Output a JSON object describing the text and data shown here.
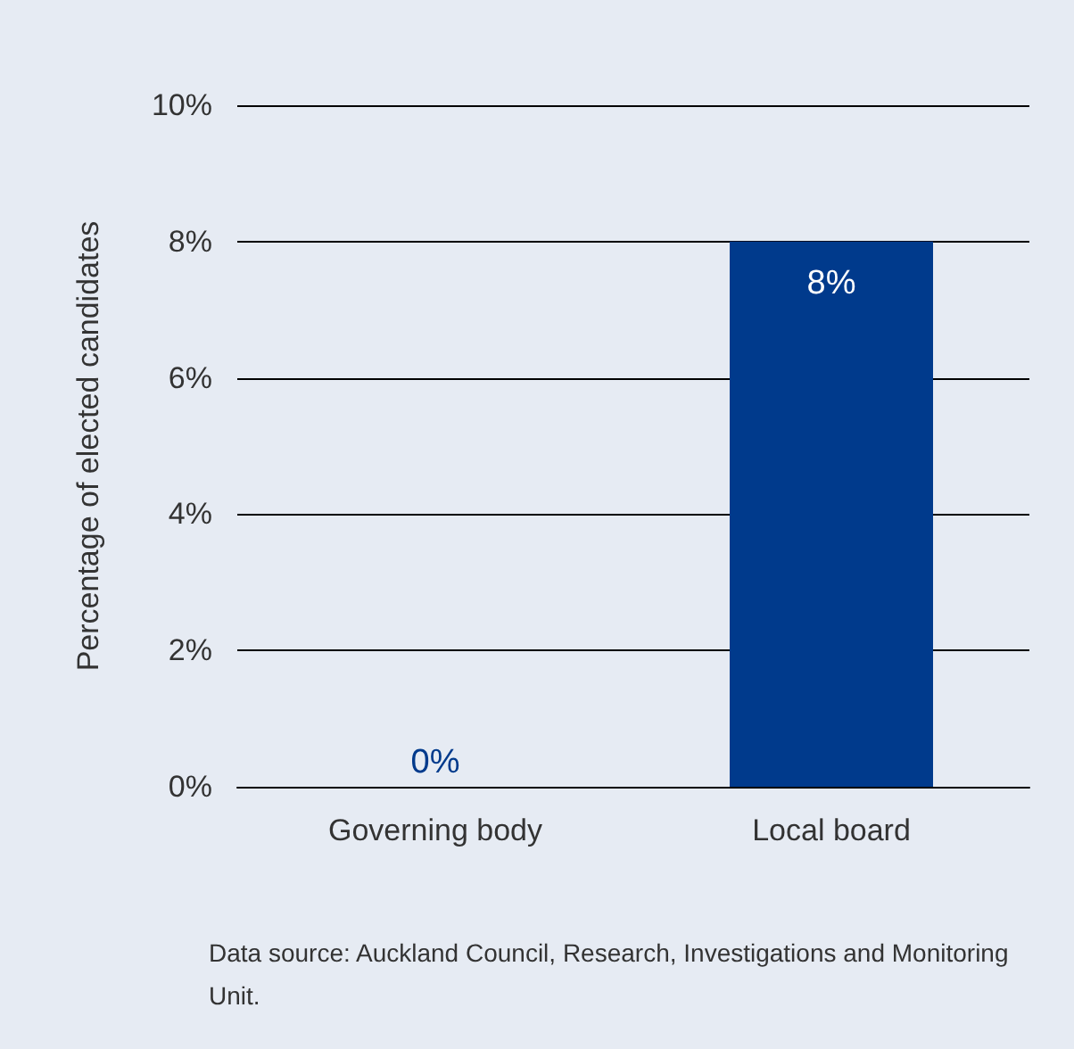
{
  "chart_data": {
    "type": "bar",
    "ylabel": "Percentage of elected candidates",
    "categories": [
      "Governing body",
      "Local board"
    ],
    "values": [
      0,
      8
    ],
    "color": "#003a8c",
    "value_labels": [
      "0%",
      "8%"
    ],
    "ylim": [
      0,
      10
    ],
    "yticks": [
      {
        "value": 0,
        "label": "0%"
      },
      {
        "value": 2,
        "label": "2%"
      },
      {
        "value": 4,
        "label": "4%"
      },
      {
        "value": 6,
        "label": "6%"
      },
      {
        "value": 8,
        "label": "8%"
      },
      {
        "value": 10,
        "label": "10%"
      }
    ],
    "grid": "y",
    "annotations": [
      "Data source: Auckland Council, Research, Investigations and Monitoring Unit."
    ]
  }
}
